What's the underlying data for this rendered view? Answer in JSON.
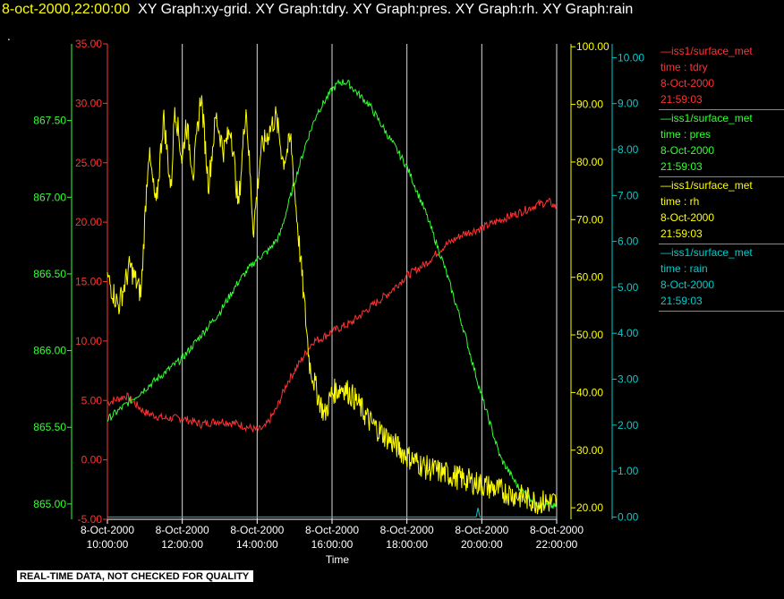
{
  "header": {
    "timestamp": "8-oct-2000,22:00:00",
    "graphs": "XY Graph:xy-grid.  XY Graph:tdry.  XY Graph:pres.  XY Graph:rh.  XY Graph:rain",
    "dot": "."
  },
  "quality_note": "REAL-TIME DATA, NOT CHECKED FOR QUALITY",
  "colors": {
    "tdry": "#ff3333",
    "pres": "#33ff33",
    "rh": "#ffff00",
    "rain": "#00cccc",
    "grid": "#ffffff"
  },
  "legend": [
    {
      "name": "—iss1/surface_met",
      "var": "time : tdry",
      "date": "8-Oct-2000",
      "time": "21:59:03",
      "color": "#ff3333"
    },
    {
      "name": "—iss1/surface_met",
      "var": "time : pres",
      "date": "8-Oct-2000",
      "time": "21:59:03",
      "color": "#33ff33"
    },
    {
      "name": "—iss1/surface_met",
      "var": "time : rh",
      "date": "8-Oct-2000",
      "time": "21:59:03",
      "color": "#ffff00"
    },
    {
      "name": "—iss1/surface_met",
      "var": "time : rain",
      "date": "8-Oct-2000",
      "time": "21:59:03",
      "color": "#00cccc"
    }
  ],
  "chart_data": {
    "type": "line",
    "xlabel": "Time",
    "x_ticks": [
      {
        "date": "8-Oct-2000",
        "time": "10:00:00",
        "hour": 10
      },
      {
        "date": "8-Oct-2000",
        "time": "12:00:00",
        "hour": 12
      },
      {
        "date": "8-Oct-2000",
        "time": "14:00:00",
        "hour": 14
      },
      {
        "date": "8-Oct-2000",
        "time": "16:00:00",
        "hour": 16
      },
      {
        "date": "8-Oct-2000",
        "time": "18:00:00",
        "hour": 18
      },
      {
        "date": "8-Oct-2000",
        "time": "20:00:00",
        "hour": 20
      },
      {
        "date": "8-Oct-2000",
        "time": "22:00:00",
        "hour": 22
      }
    ],
    "xlim": [
      10,
      22
    ],
    "grid": true,
    "axes": {
      "pres": {
        "ticks": [
          "865.00",
          "865.50",
          "866.00",
          "866.50",
          "867.00",
          "867.50"
        ],
        "range": [
          864.9,
          868.0
        ]
      },
      "tdry": {
        "ticks": [
          "-5.00",
          "0.00",
          "5.00",
          "10.00",
          "15.00",
          "20.00",
          "25.00",
          "30.00",
          "35.00"
        ],
        "range": [
          -5,
          35
        ]
      },
      "rh": {
        "ticks": [
          "20.00",
          "30.00",
          "40.00",
          "50.00",
          "60.00",
          "70.00",
          "80.00",
          "90.00",
          "100.00"
        ],
        "range": [
          18,
          100.5
        ]
      },
      "rain": {
        "ticks": [
          "0.00",
          "1.00",
          "2.00",
          "3.00",
          "4.00",
          "5.00",
          "6.00",
          "7.00",
          "8.00",
          "9.00",
          "10.00"
        ],
        "range": [
          -0.05,
          10.3
        ]
      }
    },
    "series": [
      {
        "key": "tdry",
        "x": [
          10,
          10.5,
          11,
          11.5,
          12,
          12.5,
          13,
          13.5,
          14,
          14.2,
          14.5,
          14.8,
          15,
          15.2,
          15.4,
          15.5,
          15.7,
          16,
          16.5,
          17,
          17.5,
          18,
          18.5,
          19,
          19.5,
          20,
          20.5,
          21,
          21.5,
          21.8,
          22
        ],
        "y": [
          4.8,
          5.4,
          4.0,
          3.5,
          3.5,
          3.0,
          3.3,
          3.0,
          2.5,
          2.7,
          4.2,
          6.5,
          7.5,
          8.5,
          9.5,
          10,
          10.2,
          10.8,
          11.5,
          12.8,
          14,
          15.5,
          16.5,
          18,
          19,
          19.5,
          20.2,
          20.8,
          21.5,
          21.7,
          21.2
        ]
      },
      {
        "key": "pres",
        "x": [
          10,
          10.5,
          11,
          11.5,
          12,
          12.5,
          13,
          13.5,
          14,
          14.3,
          14.6,
          15,
          15.3,
          15.6,
          16,
          16.2,
          16.4,
          16.8,
          17,
          17.5,
          18,
          18.5,
          19,
          19.5,
          20,
          20.5,
          21,
          21.5,
          22
        ],
        "y": [
          865.55,
          865.65,
          865.75,
          865.85,
          865.95,
          866.1,
          866.25,
          866.45,
          866.6,
          866.65,
          866.75,
          867.1,
          867.35,
          867.55,
          867.7,
          867.75,
          867.75,
          867.65,
          867.6,
          867.4,
          867.2,
          866.9,
          866.55,
          866.15,
          865.7,
          865.3,
          865.1,
          865.0,
          864.98
        ]
      },
      {
        "key": "rh",
        "x": [
          10,
          10.3,
          10.6,
          10.9,
          11.0,
          11.1,
          11.3,
          11.5,
          11.7,
          11.8,
          12.0,
          12.1,
          12.3,
          12.5,
          12.7,
          12.9,
          13.1,
          13.3,
          13.5,
          13.7,
          13.9,
          14.1,
          14.3,
          14.5,
          14.7,
          14.9,
          15.0,
          15.2,
          15.4,
          15.6,
          15.8,
          16.0,
          16.3,
          16.6,
          17,
          17.5,
          18,
          18.5,
          19,
          19.5,
          20,
          20.5,
          21,
          21.5,
          22
        ],
        "y": [
          60,
          55,
          62,
          57,
          70,
          82,
          72,
          88,
          75,
          90,
          80,
          87,
          78,
          92,
          76,
          88,
          82,
          86,
          72,
          90,
          68,
          82,
          85,
          88,
          80,
          84,
          75,
          60,
          45,
          40,
          36,
          40,
          41,
          39,
          35,
          32,
          29,
          27,
          26,
          25,
          24,
          23,
          22,
          21,
          21
        ]
      },
      {
        "key": "rain",
        "x": [
          10,
          19.85,
          19.9,
          19.95,
          22
        ],
        "y": [
          0,
          0,
          0.2,
          0,
          0
        ]
      }
    ]
  }
}
